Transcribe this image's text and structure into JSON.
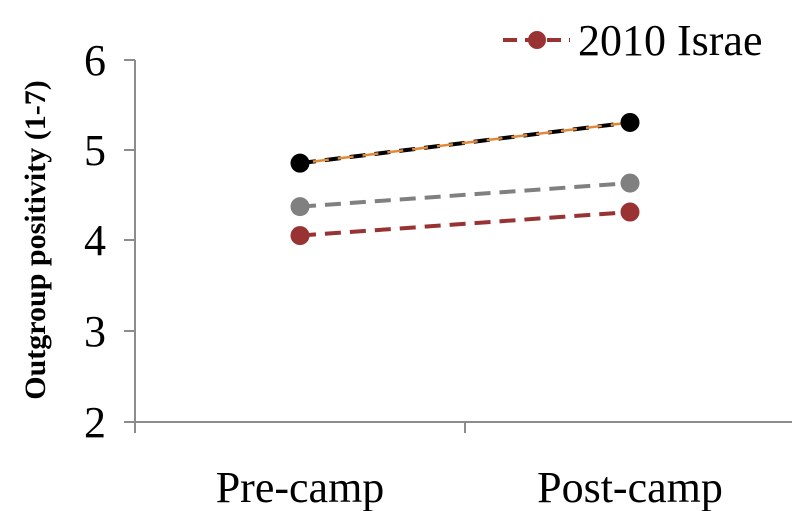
{
  "chart_data": {
    "type": "line",
    "categories": [
      "Pre-camp",
      "Post-camp"
    ],
    "ylabel": "Outgroup positivity (1-7)",
    "ylim": [
      2,
      6
    ],
    "yticks": [
      "2",
      "3",
      "4",
      "5",
      "6"
    ],
    "series": [
      {
        "name": "",
        "values": [
          4.86,
          5.31
        ],
        "color": "#000000",
        "overlay_color": "#E0893A",
        "line_style": "dashed"
      },
      {
        "name": "",
        "values": [
          4.38,
          4.64
        ],
        "color": "#808080",
        "line_style": "dashed"
      },
      {
        "name": "2010 Israe",
        "values": [
          4.06,
          4.32
        ],
        "color": "#993333",
        "line_style": "dashed"
      }
    ],
    "legend": {
      "position": "top-right",
      "visible_entries": [
        {
          "label": "2010 Israe",
          "color": "#993333"
        }
      ]
    }
  }
}
